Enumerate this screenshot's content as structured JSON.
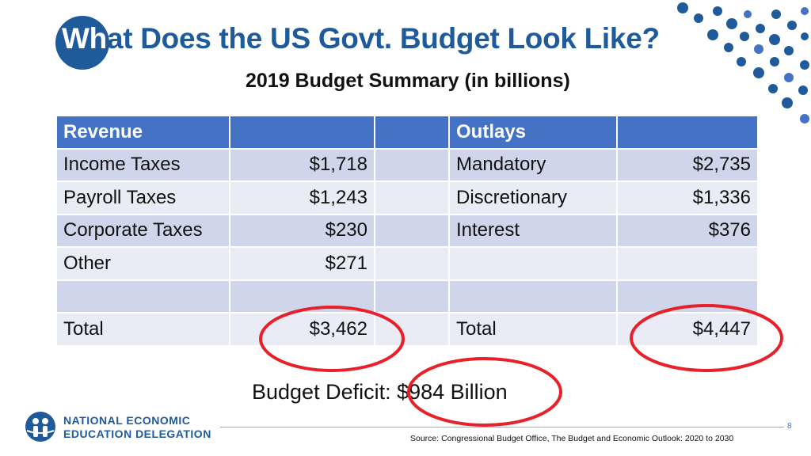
{
  "title": {
    "highlight": "Wh",
    "rest": "at Does the US Govt. Budget Look Like?"
  },
  "subtitle": "2019 Budget Summary (in billions)",
  "table": {
    "headers": [
      "Revenue",
      "",
      "",
      "Outlays",
      ""
    ],
    "rows": [
      [
        "Income Taxes",
        "$1,718",
        "",
        "Mandatory",
        "$2,735"
      ],
      [
        "Payroll Taxes",
        "$1,243",
        "",
        "Discretionary",
        "$1,336"
      ],
      [
        "Corporate Taxes",
        "$230",
        "",
        "Interest",
        "$376"
      ],
      [
        "Other",
        "$271",
        "",
        "",
        ""
      ],
      [
        "",
        "",
        "",
        "",
        ""
      ],
      [
        "Total",
        "$3,462",
        "",
        "Total",
        "$4,447"
      ]
    ]
  },
  "deficit": "Budget Deficit: $984 Billion",
  "logo": {
    "line1": "NATIONAL ECONOMIC",
    "line2": "EDUCATION DELEGATION"
  },
  "page_number": "8",
  "source": "Source: Congressional Budget Office, The Budget and Economic Outlook: 2020 to 2030",
  "colors": {
    "brand": "#1f5b9a",
    "header": "#4472c4",
    "row_odd": "#cfd5ea",
    "row_even": "#e9ebf5",
    "highlight_ring": "#e8202a"
  }
}
